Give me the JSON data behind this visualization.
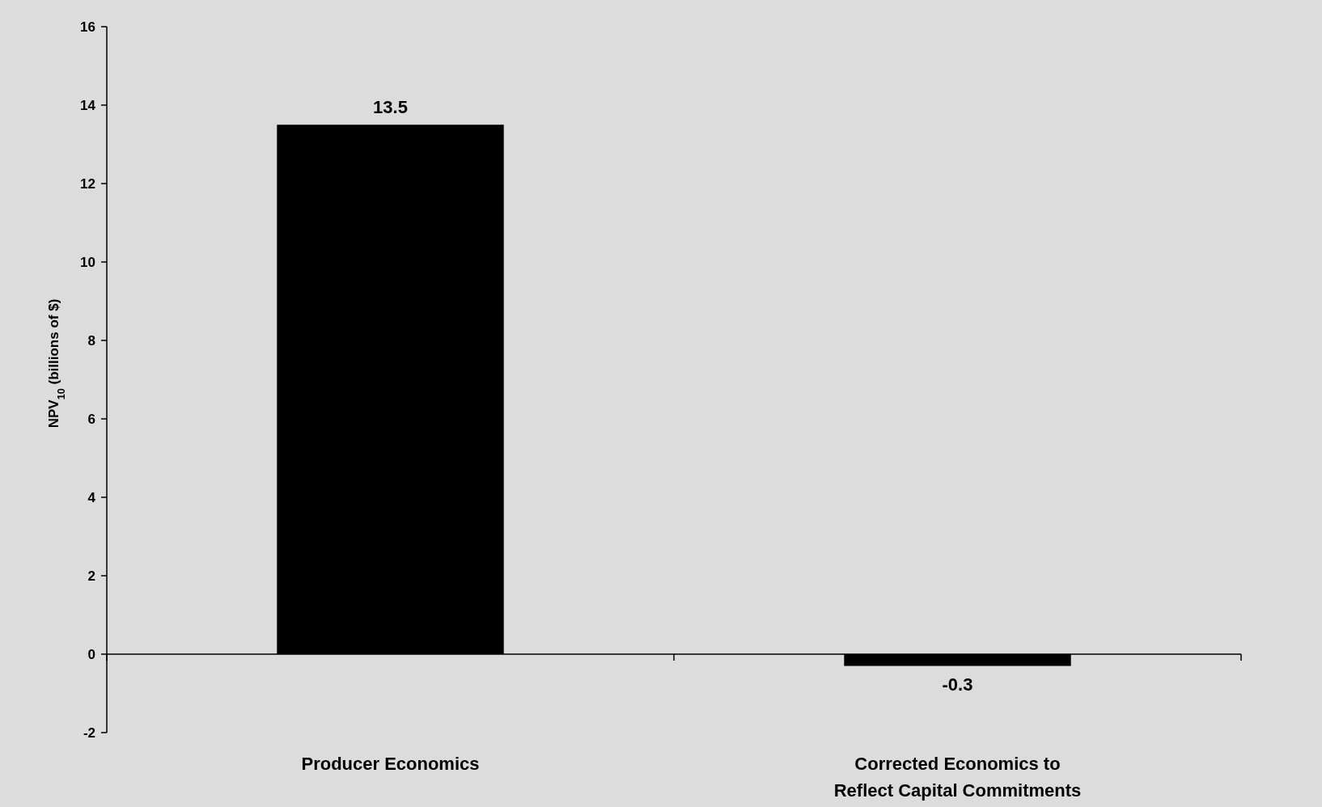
{
  "chart_data": {
    "type": "bar",
    "ylabel": "NPV$_{10}$ (billions of $)",
    "categories": [
      "Producer Economics",
      "Corrected Economics to Reflect Capital Commitments"
    ],
    "values": [
      13.5,
      -0.3
    ],
    "color": "#000000",
    "ylim": [
      -2,
      16
    ],
    "yticks": [
      -2,
      0,
      2,
      4,
      6,
      8,
      10,
      12,
      14,
      16
    ],
    "data_labels": true
  }
}
